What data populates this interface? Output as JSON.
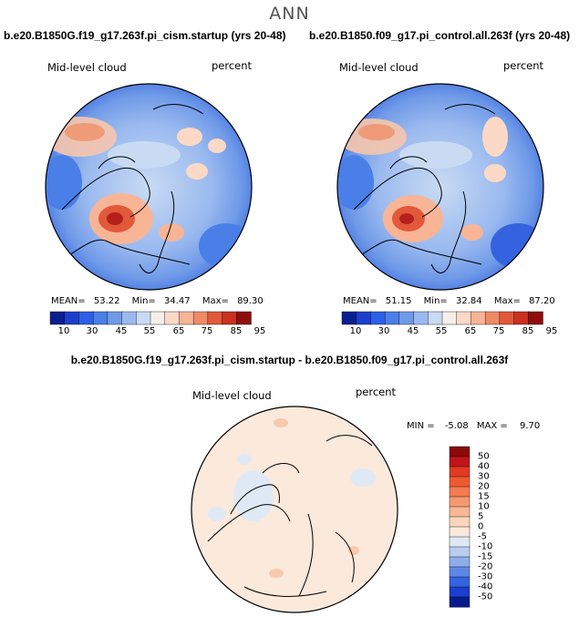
{
  "title": "ANN",
  "panels": [
    {
      "case": "b.e20.B1850G.f19_g17.263f.pi_cism.startup (yrs 20-48)",
      "variable": "Mid-level cloud",
      "units": "percent",
      "mean_label": "MEAN=",
      "mean": "53.22",
      "min_label": "Min=",
      "min": "34.47",
      "max_label": "Max=",
      "max": "89.30"
    },
    {
      "case": "b.e20.B1850.f09_g17.pi_control.all.263f (yrs 20-48)",
      "variable": "Mid-level cloud",
      "units": "percent",
      "mean_label": "MEAN=",
      "mean": "51.15",
      "min_label": "Min=",
      "min": "32.84",
      "max_label": "Max=",
      "max": "87.20"
    }
  ],
  "diff": {
    "title": "b.e20.B1850G.f19_g17.263f.pi_cism.startup - b.e20.B1850.f09_g17.pi_control.all.263f",
    "variable": "Mid-level cloud",
    "units": "percent",
    "min_label": "MIN =",
    "min": "-5.08",
    "max_label": "MAX =",
    "max": "9.70"
  },
  "colorbar_main": {
    "ticks": [
      "10",
      "30",
      "45",
      "55",
      "65",
      "75",
      "85",
      "95"
    ],
    "colors": [
      "#0a1f8f",
      "#1c3fcb",
      "#2c5ee6",
      "#4a7fe8",
      "#6f9ae8",
      "#9ab9ef",
      "#c8dbf3",
      "#f6efe9",
      "#fbd9c6",
      "#f7b596",
      "#ef8a66",
      "#e2583a",
      "#c9301f",
      "#8f0d0d"
    ]
  },
  "colorbar_diff": {
    "ticks": [
      "50",
      "40",
      "30",
      "20",
      "15",
      "10",
      "5",
      "0",
      "-5",
      "-10",
      "-15",
      "-20",
      "-30",
      "-40",
      "-50"
    ],
    "colors": [
      "#8b0a0a",
      "#c0151a",
      "#e03a22",
      "#ee5a30",
      "#f47a4f",
      "#f5996f",
      "#f8b896",
      "#fbd6bd",
      "#fbe9dc",
      "#dfe9f6",
      "#b8cdf0",
      "#8fadea",
      "#5e88e6",
      "#3563e0",
      "#1a3fcf",
      "#071b8c"
    ]
  },
  "icons": {
    "map": "polar-stereographic-map"
  }
}
